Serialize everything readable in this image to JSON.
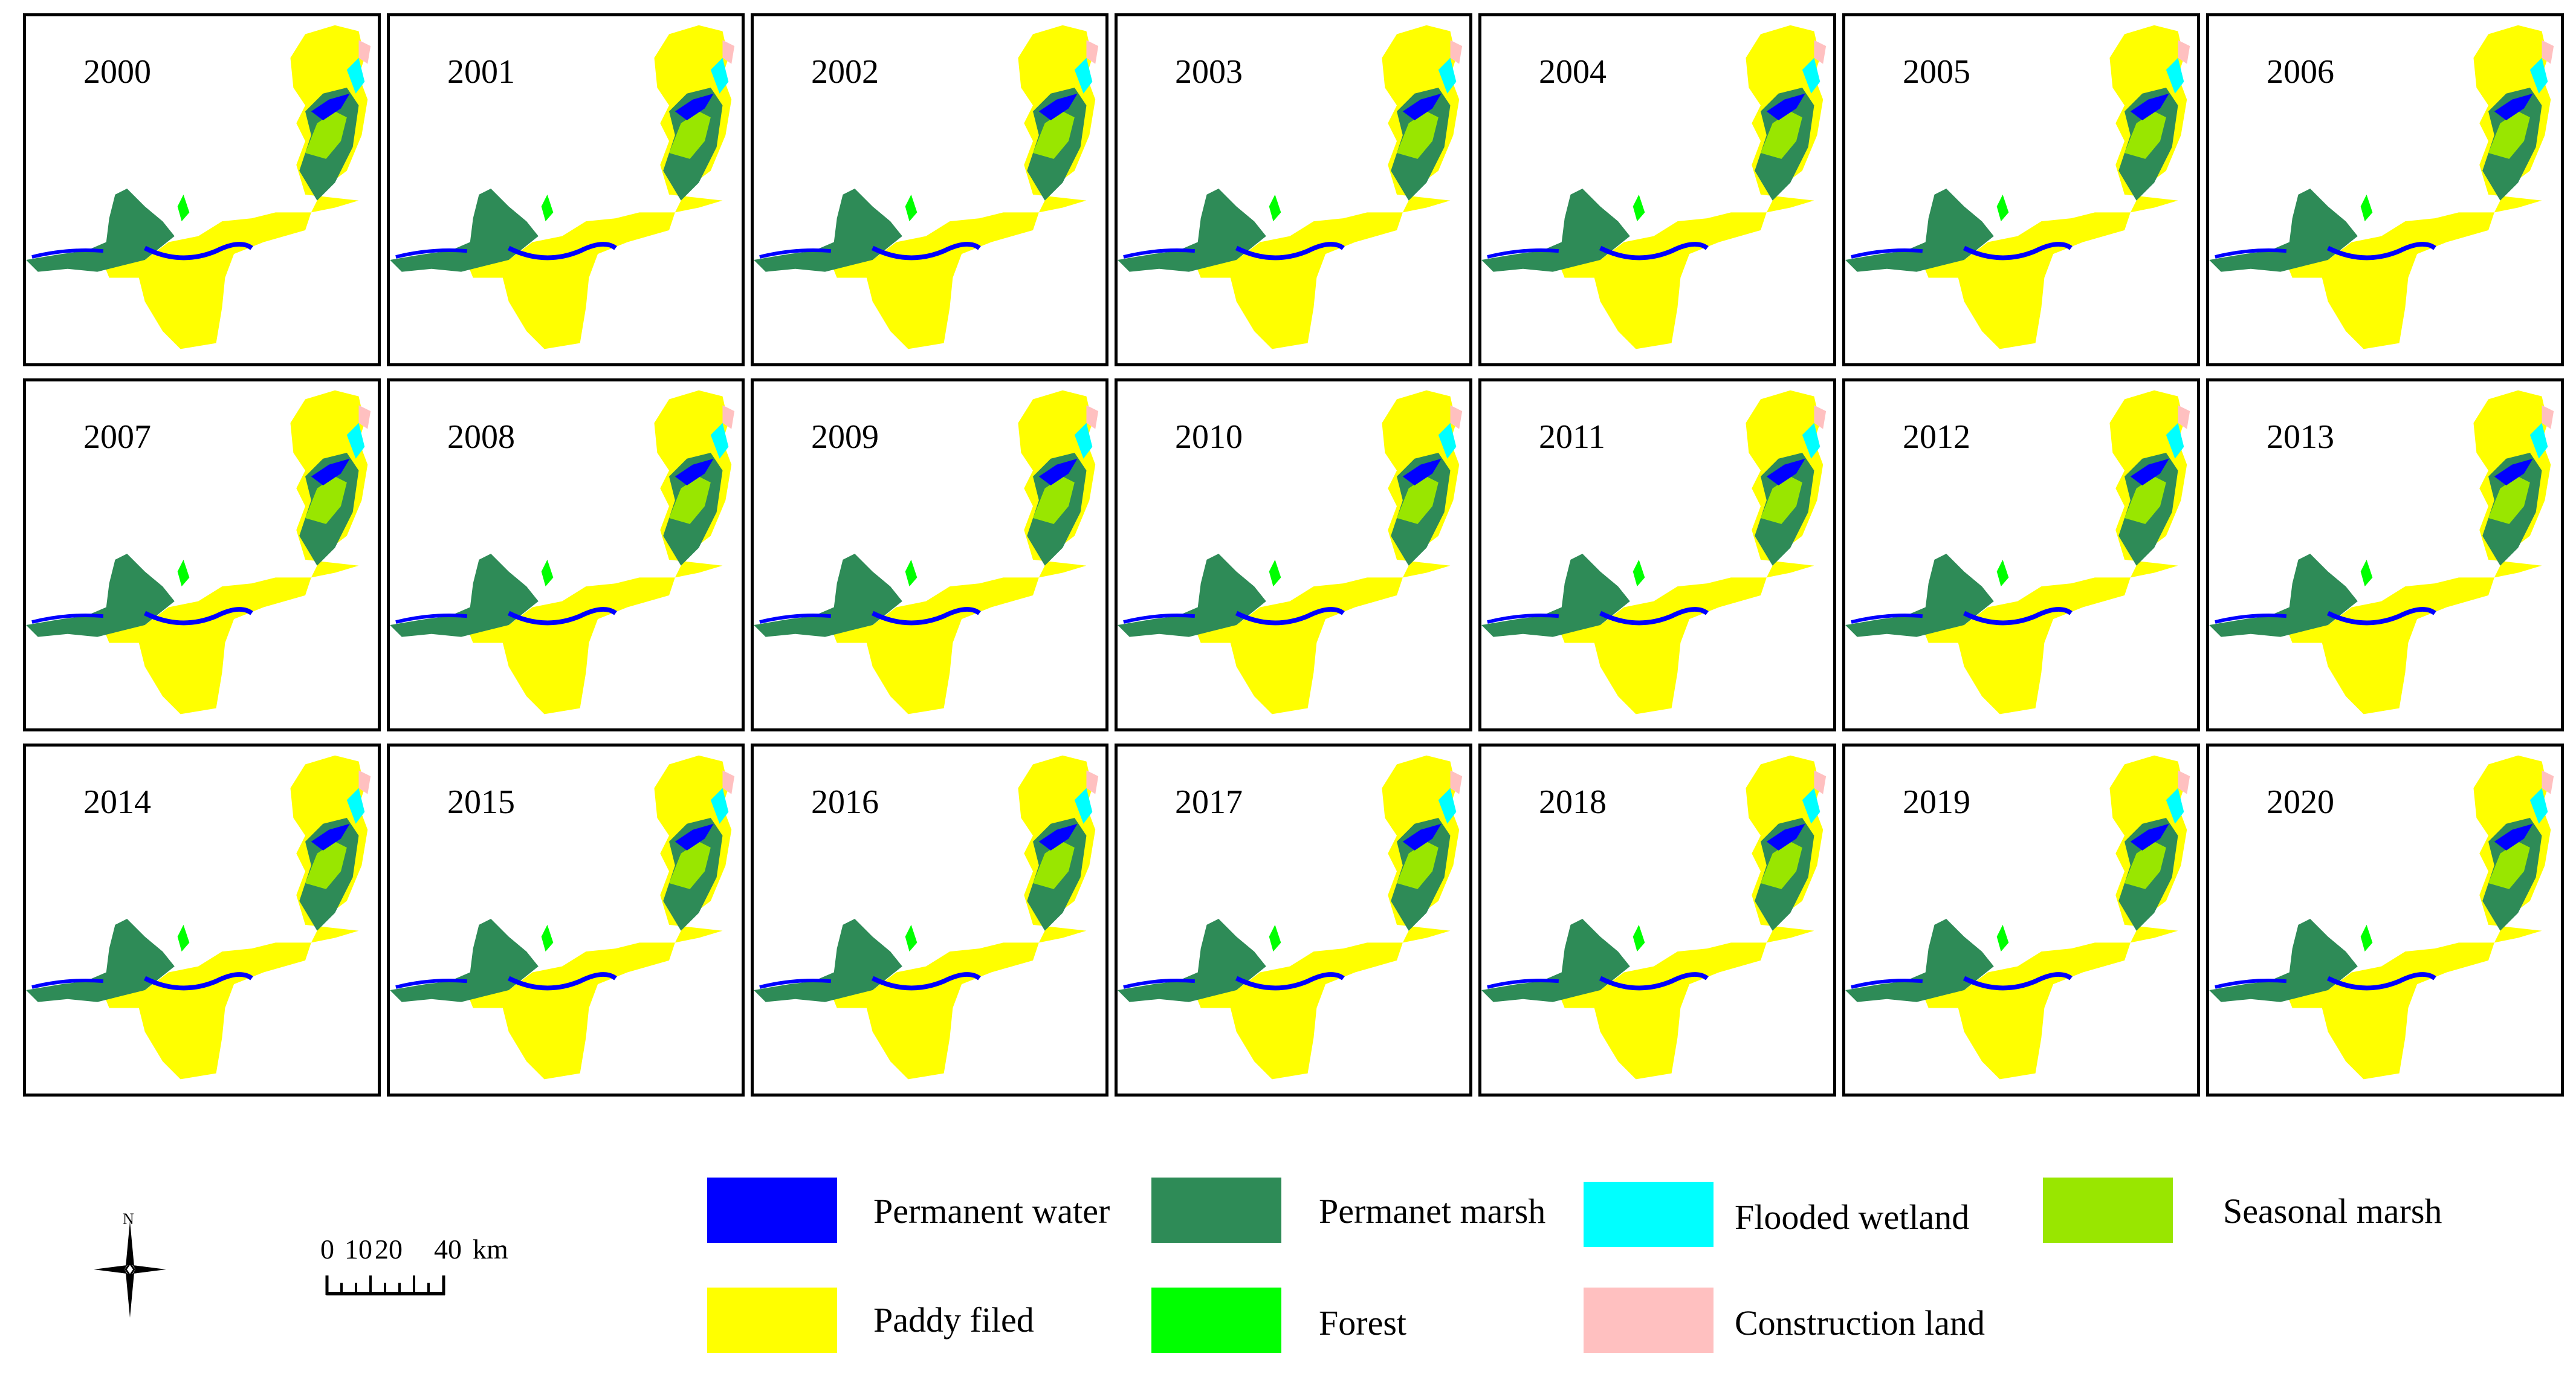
{
  "years": [
    "2000",
    "2001",
    "2002",
    "2003",
    "2004",
    "2005",
    "2006",
    "2007",
    "2008",
    "2009",
    "2010",
    "2011",
    "2012",
    "2013",
    "2014",
    "2015",
    "2016",
    "2017",
    "2018",
    "2019",
    "2020"
  ],
  "legend": [
    {
      "label": "Permanent water",
      "color": "#0000ff"
    },
    {
      "label": "Permanet marsh",
      "color": "#2e8b57"
    },
    {
      "label": "Flooded wetland",
      "color": "#00ffff"
    },
    {
      "label": "Seasonal marsh",
      "color": "#99e600"
    },
    {
      "label": "Paddy filed",
      "color": "#ffff00"
    },
    {
      "label": "Forest",
      "color": "#00ff00"
    },
    {
      "label": "Construction land",
      "color": "#ffc0c0"
    }
  ],
  "north_arrow": {
    "label": "N",
    "icon": "north-arrow-icon"
  },
  "scale_bar": {
    "ticks": [
      "0",
      "10",
      "20",
      "40"
    ],
    "unit": "km"
  }
}
